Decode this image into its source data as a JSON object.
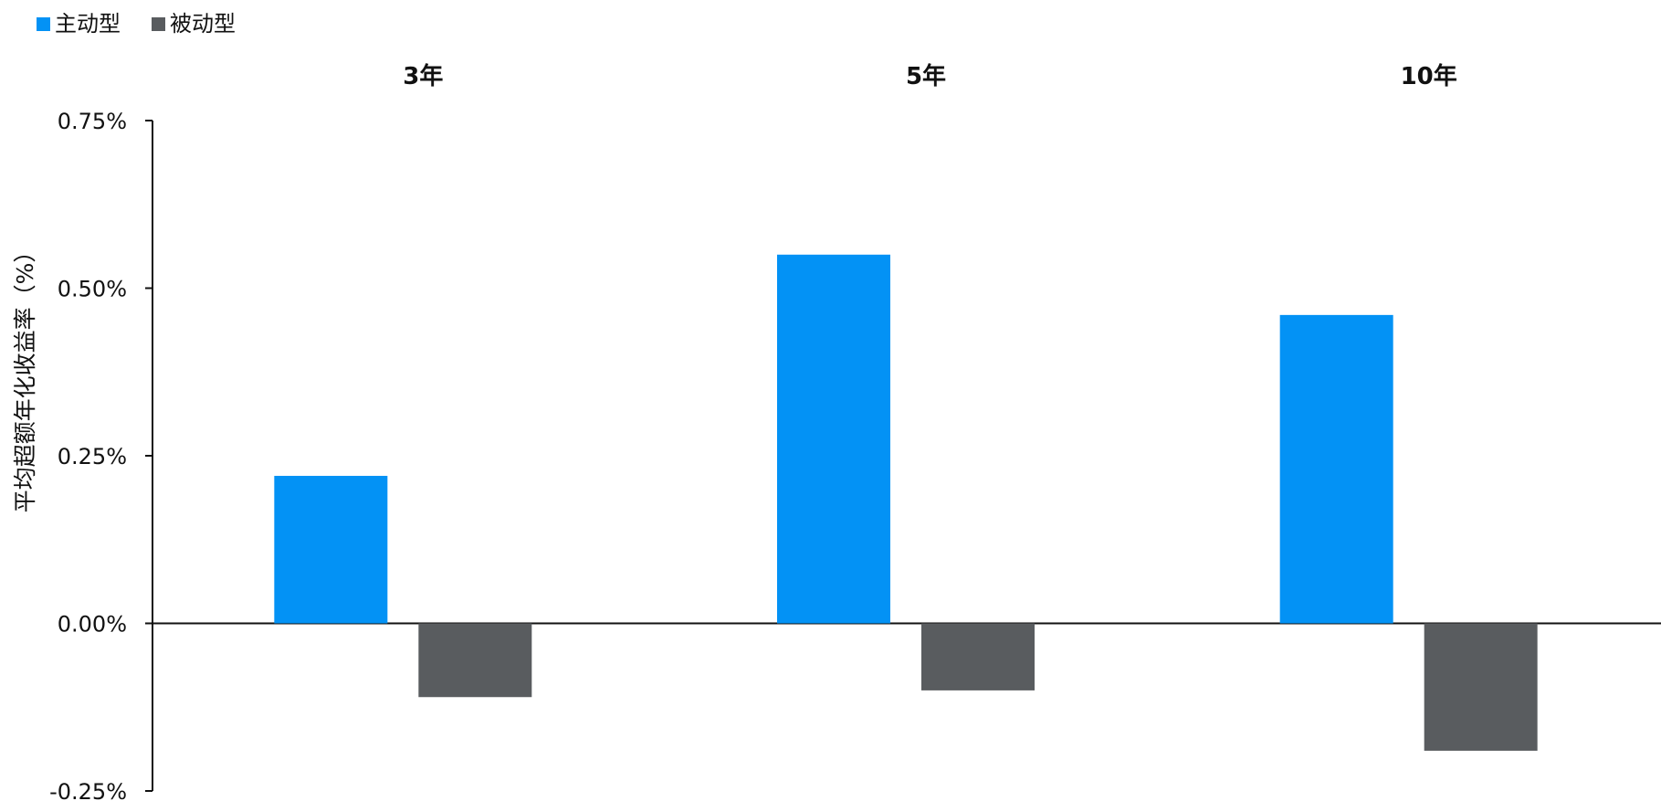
{
  "chart_data": {
    "type": "bar",
    "categories": [
      "3年",
      "5年",
      "10年"
    ],
    "series": [
      {
        "name": "主动型",
        "values": [
          0.22,
          0.55,
          0.46
        ],
        "color": "#0392F5"
      },
      {
        "name": "被动型",
        "values": [
          -0.11,
          -0.1,
          -0.19
        ],
        "color": "#595C5F"
      }
    ],
    "ylabel": "平均超额年化收益率（%）",
    "yticks": [
      "-0.25%",
      "0.00%",
      "0.25%",
      "0.50%",
      "0.75%"
    ],
    "ytick_values": [
      -0.25,
      0,
      0.25,
      0.5,
      0.75
    ],
    "ylim": [
      -0.25,
      0.75
    ],
    "legend_position": "top-left",
    "grid": false
  }
}
